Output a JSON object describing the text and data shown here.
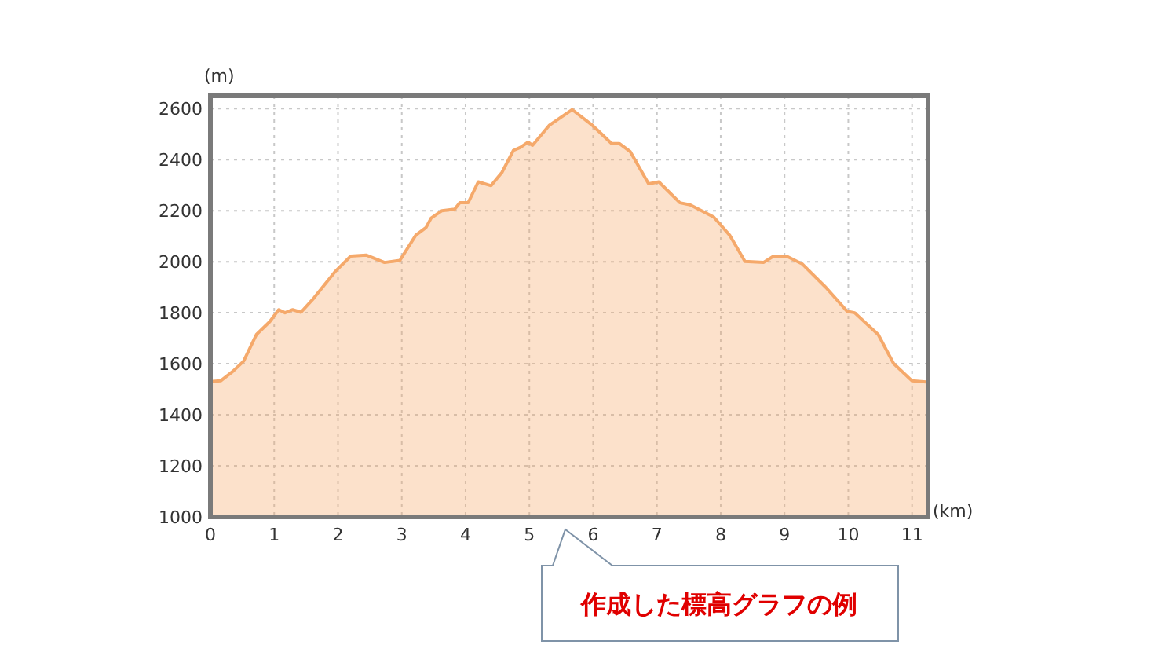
{
  "chart_data": {
    "type": "area",
    "xlabel": "(km)",
    "ylabel": "(m)",
    "annotations": [
      "作成した標高グラフの例"
    ],
    "x": [
      0,
      0.16,
      0.35,
      0.52,
      0.72,
      0.93,
      1.07,
      1.17,
      1.29,
      1.42,
      1.62,
      1.95,
      2.2,
      2.44,
      2.73,
      2.97,
      3.22,
      3.38,
      3.46,
      3.63,
      3.83,
      3.91,
      4.04,
      4.2,
      4.4,
      4.57,
      4.75,
      4.86,
      4.98,
      5.05,
      5.31,
      5.67,
      5.99,
      6.29,
      6.41,
      6.58,
      6.87,
      7.03,
      7.36,
      7.52,
      7.73,
      7.89,
      8.14,
      8.38,
      8.67,
      8.83,
      9.03,
      9.28,
      9.65,
      9.98,
      10.1,
      10.47,
      10.71,
      11.0,
      11.22
    ],
    "series": [
      {
        "color": "#f5a96b",
        "values": [
          1530,
          1533,
          1570,
          1610,
          1714,
          1765,
          1812,
          1800,
          1812,
          1802,
          1857,
          1960,
          2022,
          2026,
          1997,
          2005,
          2104,
          2134,
          2171,
          2200,
          2206,
          2231,
          2231,
          2313,
          2298,
          2350,
          2436,
          2448,
          2469,
          2456,
          2534,
          2596,
          2534,
          2463,
          2463,
          2432,
          2305,
          2313,
          2231,
          2223,
          2196,
          2175,
          2104,
          2001,
          1997,
          2022,
          2022,
          1991,
          1899,
          1806,
          1800,
          1714,
          1601,
          1533,
          1529
        ]
      }
    ],
    "xlim": [
      0,
      11.25
    ],
    "ylim": [
      1000,
      2650
    ],
    "xticks": [
      0,
      1,
      2,
      3,
      4,
      5,
      6,
      7,
      8,
      9,
      10,
      11
    ],
    "yticks": [
      1000,
      1200,
      1400,
      1600,
      1800,
      2000,
      2200,
      2400,
      2600
    ],
    "grid": true,
    "marker": "none",
    "line_style": "solid"
  }
}
